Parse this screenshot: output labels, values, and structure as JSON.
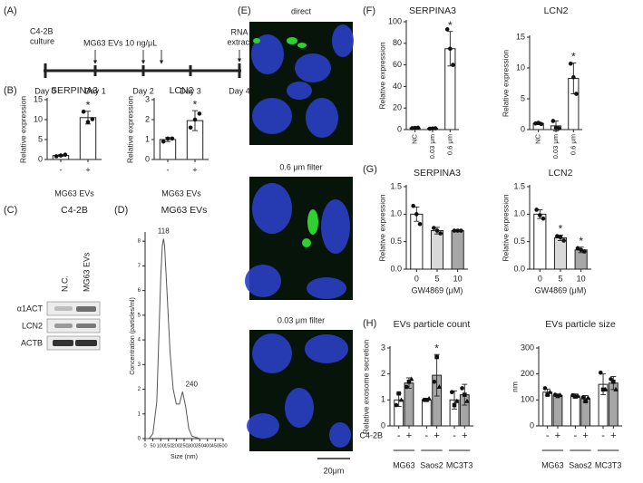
{
  "panel_labels": [
    "(A)",
    "(B)",
    "(C)",
    "(D)",
    "(E)",
    "(F)",
    "(G)",
    "(H)"
  ],
  "timeline": {
    "start_label": [
      "C4-2B",
      "culture"
    ],
    "treatment": "MG63 EVs 10 ng/μL",
    "end_label": [
      "RNA",
      "extract"
    ],
    "days": [
      "Day 0",
      "Day 1",
      "Day 2",
      "Day 3",
      "Day 4"
    ]
  },
  "blot": {
    "title": "C4-2B",
    "lanes": [
      "N.C.",
      "MG63 EVs"
    ],
    "rows": [
      "α1ACT",
      "LCN2",
      "ACTB"
    ]
  },
  "images": {
    "panels": [
      "direct",
      "0.6 μm filter",
      "0.03 μm filter"
    ],
    "scale_bar": "20μm"
  },
  "chart_data": [
    {
      "type": "bar",
      "title": "SERPINA3",
      "ylabel": "Relative expression",
      "xlabel": "MG63 EVs",
      "categories": [
        "-",
        "+"
      ],
      "values": [
        1.0,
        10.5
      ],
      "errors": [
        0.2,
        1.6
      ],
      "points": [
        [
          0.8,
          1.0,
          1.2
        ],
        [
          12.0,
          9.4,
          10.1
        ]
      ],
      "stars": [
        null,
        "*"
      ],
      "colors": [
        "#ffffff",
        "#ffffff"
      ],
      "ylim": [
        0,
        15
      ],
      "yticks": [
        0,
        5,
        10,
        15
      ]
    },
    {
      "type": "bar",
      "title": "LCN2",
      "ylabel": "Relative expression",
      "xlabel": "MG63 EVs",
      "categories": [
        "-",
        "+"
      ],
      "values": [
        1.0,
        1.95
      ],
      "errors": [
        0.1,
        0.5
      ],
      "points": [
        [
          0.9,
          1.05,
          1.05
        ],
        [
          1.6,
          2.0,
          2.3
        ]
      ],
      "stars": [
        null,
        "*"
      ],
      "colors": [
        "#ffffff",
        "#ffffff"
      ],
      "ylim": [
        0,
        3
      ],
      "yticks": [
        0,
        1,
        2,
        3
      ]
    },
    {
      "type": "line",
      "title": "MG63 EVs",
      "xlabel": "Size (nm)",
      "ylabel": "Concentration (particles/ml)",
      "x": [
        0,
        25,
        50,
        75,
        100,
        110,
        118,
        125,
        140,
        160,
        180,
        200,
        220,
        240,
        260,
        280,
        300,
        350,
        400,
        450,
        500
      ],
      "values": [
        0,
        0,
        0.2,
        1.5,
        6.5,
        7.8,
        8.1,
        7.8,
        6.0,
        3.5,
        2.0,
        1.4,
        1.4,
        1.9,
        1.3,
        0.4,
        0.1,
        0,
        0,
        0,
        0
      ],
      "color": "#555555",
      "annotations": [
        {
          "text": "118",
          "x": 118,
          "y": 8.1
        },
        {
          "text": "240",
          "x": 240,
          "y": 1.9
        }
      ],
      "xlim": [
        0,
        500
      ],
      "xticks": [
        0,
        50,
        100,
        150,
        200,
        250,
        300,
        350,
        400,
        450,
        500
      ],
      "ylim": [
        0,
        8.3
      ],
      "yticks": [
        0,
        1,
        2,
        3,
        4,
        5,
        6,
        7,
        8
      ]
    },
    {
      "type": "bar",
      "title": "SERPINA3",
      "ylabel": "Relative expression",
      "categories": [
        "NC",
        "0.03 μm",
        "0.6 μm"
      ],
      "values": [
        1.5,
        1.0,
        75
      ],
      "errors": [
        0.3,
        0.3,
        16
      ],
      "points": [
        [
          1.3,
          1.5,
          1.7
        ],
        [
          0.8,
          1.0,
          1.2
        ],
        [
          93,
          75,
          60
        ]
      ],
      "stars": [
        null,
        null,
        "*"
      ],
      "colors": [
        "#ffffff",
        "#ffffff",
        "#ffffff"
      ],
      "ylim": [
        0,
        100
      ],
      "yticks": [
        0,
        20,
        40,
        60,
        80,
        100
      ]
    },
    {
      "type": "bar",
      "title": "LCN2",
      "ylabel": "Relative expression",
      "categories": [
        "NC",
        "0.03 μm",
        "0.6 μm"
      ],
      "values": [
        1.0,
        0.6,
        8.3
      ],
      "errors": [
        0.2,
        0.8,
        2.5
      ],
      "points": [
        [
          1.0,
          1.1,
          0.9
        ],
        [
          1.4,
          0.3,
          0.2
        ],
        [
          10.7,
          8.5,
          5.8
        ]
      ],
      "stars": [
        null,
        null,
        "*"
      ],
      "colors": [
        "#ffffff",
        "#ffffff",
        "#ffffff"
      ],
      "ylim": [
        0,
        15
      ],
      "yticks": [
        0,
        5,
        10,
        15
      ]
    },
    {
      "type": "bar",
      "title": "SERPINA3",
      "ylabel": "Relative expression",
      "xlabel": "GW4869 (μM)",
      "categories": [
        "0",
        "5",
        "10"
      ],
      "values": [
        1.0,
        0.7,
        0.7
      ],
      "errors": [
        0.13,
        0.06,
        0.01
      ],
      "points": [
        [
          1.15,
          1.0,
          0.82
        ],
        [
          0.75,
          0.7,
          0.65
        ],
        [
          0.7,
          0.7,
          0.7
        ]
      ],
      "stars": [
        null,
        null,
        null
      ],
      "colors": [
        "#ffffff",
        "#d9d9d9",
        "#a6a6a6"
      ],
      "ylim": [
        0,
        1.5
      ],
      "yticks": [
        {
          "value": 0,
          "label": "0.0"
        },
        0.5,
        {
          "value": 1,
          "label": "1.0"
        },
        1.5
      ]
    },
    {
      "type": "bar",
      "title": "LCN2",
      "ylabel": "Relative expression",
      "xlabel": "GW4869 (μM)",
      "categories": [
        "0",
        "5",
        "10"
      ],
      "values": [
        1.0,
        0.57,
        0.35
      ],
      "errors": [
        0.08,
        0.05,
        0.05
      ],
      "points": [
        [
          1.08,
          0.98,
          0.92
        ],
        [
          0.6,
          0.58,
          0.52
        ],
        [
          0.38,
          0.35,
          0.32
        ]
      ],
      "stars": [
        null,
        "*",
        "*"
      ],
      "colors": [
        "#ffffff",
        "#d9d9d9",
        "#a6a6a6"
      ],
      "ylim": [
        0,
        1.5
      ],
      "yticks": [
        {
          "value": 0,
          "label": "0.0"
        },
        0.5,
        {
          "value": 1,
          "label": "1.0"
        },
        1.5
      ]
    },
    {
      "type": "grouped_bar",
      "title": "EVs particle count",
      "ylabel": "Relative exosome secretion",
      "row_label": "C4-2B",
      "categories": [
        "MG63",
        "Saos2",
        "MC3T3"
      ],
      "point_markers": [
        "circle",
        "square",
        "triangle"
      ],
      "series": [
        {
          "name": "-",
          "color": "#ffffff",
          "values": [
            1.0,
            1.0,
            1.0
          ],
          "errors": [
            0.25,
            0.05,
            0.35
          ],
          "points": [
            [
              0.8,
              1.25,
              1.0
            ],
            [
              1.0,
              1.0,
              1.05
            ],
            [
              1.3,
              0.8,
              0.95
            ]
          ],
          "stars": [
            null,
            null,
            null
          ]
        },
        {
          "name": "+",
          "color": "#a6a6a6",
          "values": [
            1.65,
            1.95,
            1.2
          ],
          "errors": [
            0.2,
            0.8,
            0.4
          ],
          "points": [
            [
              1.5,
              1.7,
              1.8
            ],
            [
              1.7,
              2.65,
              1.5
            ],
            [
              1.45,
              1.2,
              0.95
            ]
          ],
          "stars": [
            null,
            "*",
            null
          ]
        }
      ],
      "ylim": [
        0,
        3
      ],
      "yticks": [
        0,
        1,
        2,
        3
      ]
    },
    {
      "type": "grouped_bar",
      "title": "EVs particle size",
      "ylabel": "nm",
      "categories": [
        "MG63",
        "Saos2",
        "MC3T3"
      ],
      "point_markers": [
        "circle",
        "square",
        "triangle"
      ],
      "series": [
        {
          "name": "-",
          "color": "#ffffff",
          "values": [
            130,
            115,
            160
          ],
          "errors": [
            12,
            8,
            40
          ],
          "points": [
            [
              145,
              120,
              130
            ],
            [
              118,
              113,
              115
            ],
            [
              205,
              140,
              140
            ]
          ],
          "stars": [
            null,
            null,
            null
          ]
        },
        {
          "name": "+",
          "color": "#a6a6a6",
          "values": [
            118,
            105,
            165
          ],
          "errors": [
            5,
            12,
            25
          ],
          "points": [
            [
              120,
              115,
              118
            ],
            [
              110,
              95,
              108
            ],
            [
              180,
              170,
              140
            ]
          ],
          "stars": [
            null,
            null,
            null
          ]
        }
      ],
      "ylim": [
        0,
        300
      ],
      "yticks": [
        0,
        100,
        200,
        300
      ]
    }
  ]
}
